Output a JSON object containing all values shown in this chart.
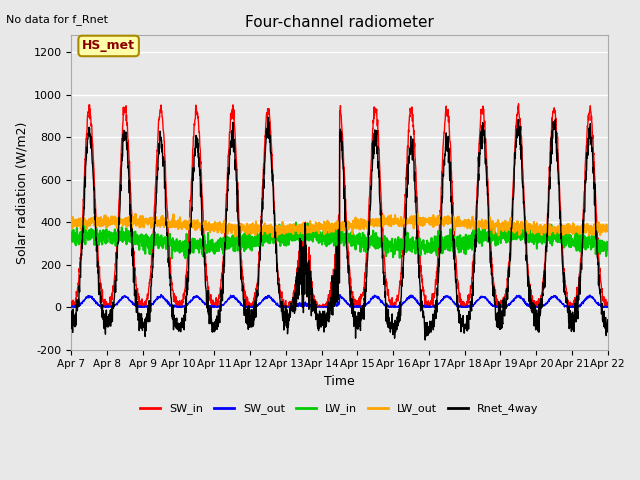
{
  "title": "Four-channel radiometer",
  "top_left_text": "No data for f_Rnet",
  "ylabel": "Solar radiation (W/m2)",
  "xlabel": "Time",
  "annotation_box": "HS_met",
  "ylim": [
    -200,
    1280
  ],
  "yticks": [
    -200,
    0,
    200,
    400,
    600,
    800,
    1000,
    1200
  ],
  "xticklabels": [
    "Apr 7",
    "Apr 8",
    "Apr 9",
    "Apr 10",
    "Apr 11",
    "Apr 12",
    "Apr 13",
    "Apr 14",
    "Apr 15",
    "Apr 16",
    "Apr 17",
    "Apr 18",
    "Apr 19",
    "Apr 20",
    "Apr 21",
    "Apr 22"
  ],
  "bg_color": "#e8e8e8",
  "legend": [
    {
      "label": "SW_in",
      "color": "#ff0000"
    },
    {
      "label": "SW_out",
      "color": "#0000ff"
    },
    {
      "label": "LW_in",
      "color": "#00cc00"
    },
    {
      "label": "LW_out",
      "color": "#ffa500"
    },
    {
      "label": "Rnet_4way",
      "color": "#000000"
    }
  ],
  "grid_color": "#ffffff",
  "n_days": 15,
  "pts_per_day": 144
}
